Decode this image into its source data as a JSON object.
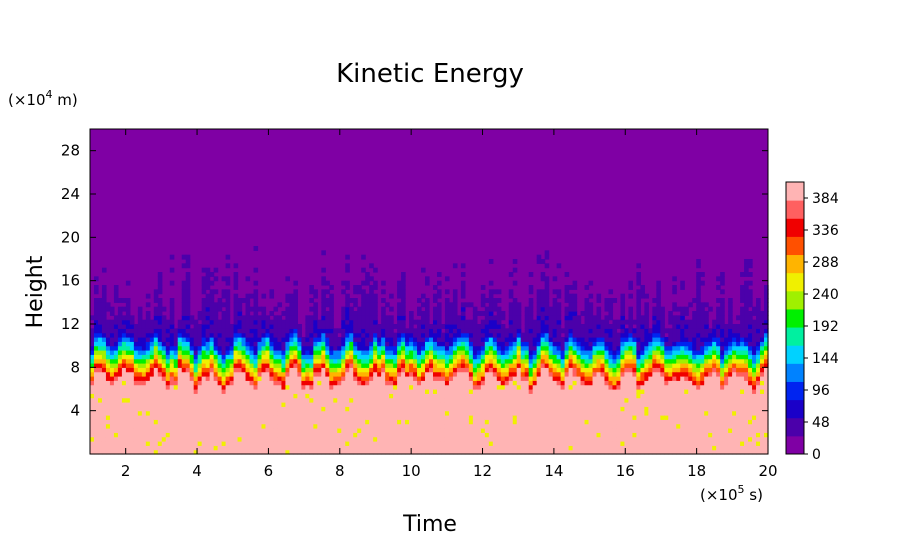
{
  "chart_data": {
    "type": "heatmap",
    "title": "Kinetic Energy",
    "xlabel": "Time",
    "ylabel": "Height",
    "x_unit": "(×10",
    "x_unit_exp": "5",
    "x_unit_tail": " s)",
    "y_unit": "(×10",
    "y_unit_exp": "4",
    "y_unit_tail": " m)",
    "xlim": [
      1,
      20
    ],
    "ylim": [
      0,
      30
    ],
    "x_ticks": [
      2,
      4,
      6,
      8,
      10,
      12,
      14,
      16,
      18,
      20
    ],
    "y_ticks": [
      4,
      8,
      12,
      16,
      20,
      24,
      28
    ],
    "colorbar": {
      "min": 0,
      "max": 408,
      "ticks": [
        0,
        48,
        96,
        144,
        192,
        240,
        288,
        336,
        384
      ],
      "colors": [
        "#7f00a4",
        "#4b00aa",
        "#1a00c8",
        "#0024f0",
        "#0082ff",
        "#00d2ff",
        "#00f0a0",
        "#00f000",
        "#a0f000",
        "#f0f000",
        "#ffb400",
        "#ff5000",
        "#f00000",
        "#ff6060",
        "#ffb4b4"
      ]
    },
    "description_fields": {
      "upper_region_value_range": [
        0,
        10
      ],
      "turbulent_band_height_range": [
        10,
        20
      ],
      "transition_band_height_range": [
        6.5,
        10.5
      ],
      "lower_region_value_min": 390
    }
  }
}
